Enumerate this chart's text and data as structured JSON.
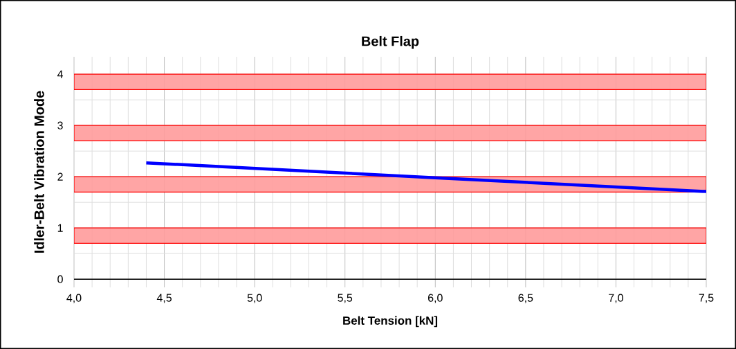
{
  "chart_data": {
    "type": "line",
    "title": "Belt Flap",
    "xlabel": "Belt Tension [kN]",
    "ylabel": "Idler-Belt Vibration Mode",
    "x": [
      4.4,
      6.0,
      7.5
    ],
    "series": [
      {
        "color": "#0000ff",
        "values": [
          2.27,
          1.98,
          1.71
        ]
      }
    ],
    "xlim": [
      4.0,
      7.5
    ],
    "ylim": [
      -0.16,
      4.34
    ],
    "xticks": [
      {
        "value": 4.0,
        "label": "4,0"
      },
      {
        "value": 4.5,
        "label": "4,5"
      },
      {
        "value": 5.0,
        "label": "5,0"
      },
      {
        "value": 5.5,
        "label": "5,5"
      },
      {
        "value": 6.0,
        "label": "6,0"
      },
      {
        "value": 6.5,
        "label": "6,5"
      },
      {
        "value": 7.0,
        "label": "7,0"
      },
      {
        "value": 7.5,
        "label": "7,5"
      }
    ],
    "yticks": [
      0,
      1,
      2,
      3,
      4
    ],
    "bands": [
      {
        "axis": "y",
        "from": 0.7,
        "to": 1.0,
        "color": "#ff9b9b"
      },
      {
        "axis": "y",
        "from": 1.7,
        "to": 2.0,
        "color": "#ff9b9b"
      },
      {
        "axis": "y",
        "from": 2.7,
        "to": 3.0,
        "color": "#ff9b9b"
      },
      {
        "axis": "y",
        "from": 3.7,
        "to": 4.0,
        "color": "#ff9b9b"
      }
    ],
    "grid": true,
    "marker": "none",
    "line_style": "solid"
  }
}
